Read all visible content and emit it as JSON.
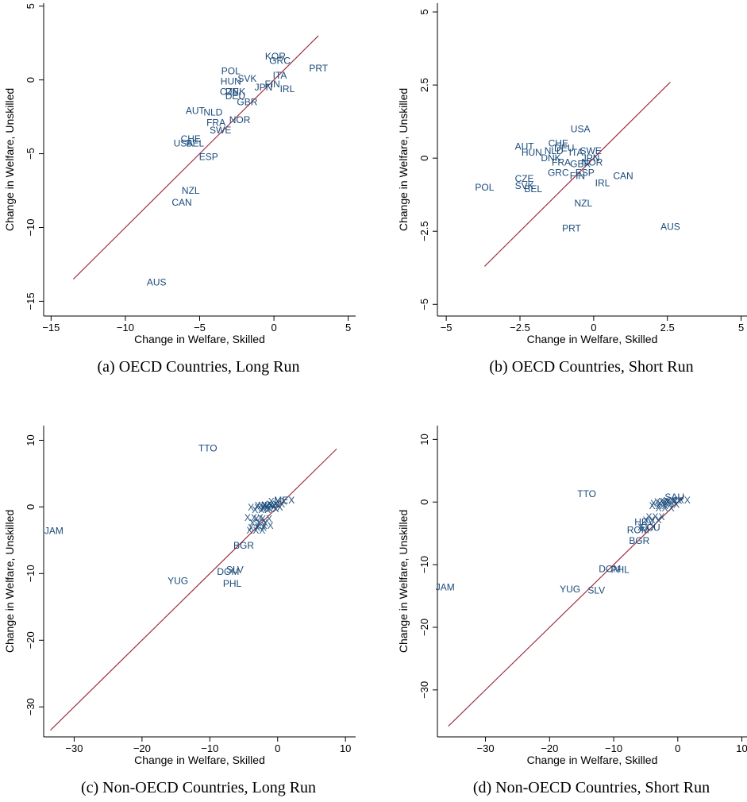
{
  "colors": {
    "points": "#1a4a7a",
    "line": "#a03040",
    "axis": "#000000"
  },
  "chart_data": [
    {
      "type": "scatter",
      "caption": "(a) OECD Countries, Long Run",
      "xlabel": "Change in Welfare, Skilled",
      "ylabel": "Change in Welfare, Unskilled",
      "xlim": [
        -15.5,
        5.5
      ],
      "ylim": [
        -16,
        5.2
      ],
      "xticks": [
        -15,
        -10,
        -5,
        0,
        5
      ],
      "yticks": [
        -15,
        -10,
        -5,
        0,
        5
      ],
      "diagonal": [
        -13.5,
        3.0
      ],
      "points": [
        {
          "label": "KOR",
          "x": 0.1,
          "y": 1.6
        },
        {
          "label": "GRC",
          "x": 0.4,
          "y": 1.3
        },
        {
          "label": "PRT",
          "x": 3.0,
          "y": 0.8
        },
        {
          "label": "POL",
          "x": -2.9,
          "y": 0.6
        },
        {
          "label": "ITA",
          "x": 0.4,
          "y": 0.3
        },
        {
          "label": "SVK",
          "x": -1.8,
          "y": 0.1
        },
        {
          "label": "HUN",
          "x": -2.9,
          "y": -0.1
        },
        {
          "label": "FIN",
          "x": -0.1,
          "y": -0.3
        },
        {
          "label": "JPN",
          "x": -0.7,
          "y": -0.5
        },
        {
          "label": "IRL",
          "x": 0.9,
          "y": -0.6
        },
        {
          "label": "CZE",
          "x": -3.0,
          "y": -0.8
        },
        {
          "label": "DNK",
          "x": -2.6,
          "y": -0.8
        },
        {
          "label": "DEU",
          "x": -2.6,
          "y": -1.1
        },
        {
          "label": "GBR",
          "x": -1.8,
          "y": -1.5
        },
        {
          "label": "AUT",
          "x": -5.3,
          "y": -2.1
        },
        {
          "label": "NLD",
          "x": -4.1,
          "y": -2.2
        },
        {
          "label": "NOR",
          "x": -2.3,
          "y": -2.7
        },
        {
          "label": "FRA",
          "x": -3.9,
          "y": -2.9
        },
        {
          "label": "SWE",
          "x": -3.6,
          "y": -3.4
        },
        {
          "label": "CHE",
          "x": -5.6,
          "y": -4.0
        },
        {
          "label": "USA",
          "x": -6.1,
          "y": -4.3
        },
        {
          "label": "BEL",
          "x": -5.3,
          "y": -4.3
        },
        {
          "label": "ESP",
          "x": -4.4,
          "y": -5.2
        },
        {
          "label": "NZL",
          "x": -5.6,
          "y": -7.5
        },
        {
          "label": "CAN",
          "x": -6.2,
          "y": -8.3
        },
        {
          "label": "AUS",
          "x": -7.9,
          "y": -13.7
        }
      ]
    },
    {
      "type": "scatter",
      "caption": "(b) OECD Countries, Short Run",
      "xlabel": "Change in Welfare, Skilled",
      "ylabel": "Change in Welfare, Unskilled",
      "xlim": [
        -5.3,
        5.2
      ],
      "ylim": [
        -5.4,
        5.3
      ],
      "xticks": [
        -5,
        -2.5,
        0,
        2.5,
        5
      ],
      "yticks": [
        -5,
        -2.5,
        0,
        2.5,
        5
      ],
      "diagonal": [
        -3.7,
        2.6
      ],
      "points": [
        {
          "label": "USA",
          "x": -0.45,
          "y": 1.0
        },
        {
          "label": "CHE",
          "x": -1.2,
          "y": 0.5
        },
        {
          "label": "AUT",
          "x": -2.35,
          "y": 0.4
        },
        {
          "label": "DEU",
          "x": -1.0,
          "y": 0.35
        },
        {
          "label": "HUN",
          "x": -2.1,
          "y": 0.2
        },
        {
          "label": "NLD",
          "x": -1.35,
          "y": 0.25
        },
        {
          "label": "SWE",
          "x": -0.1,
          "y": 0.25
        },
        {
          "label": "ITA",
          "x": -0.6,
          "y": 0.2
        },
        {
          "label": "DNK",
          "x": -1.45,
          "y": 0.0
        },
        {
          "label": "JPN",
          "x": -0.1,
          "y": 0.0
        },
        {
          "label": "FRA",
          "x": -1.1,
          "y": -0.15
        },
        {
          "label": "GBR",
          "x": -0.45,
          "y": -0.2
        },
        {
          "label": "NOR",
          "x": -0.05,
          "y": -0.15
        },
        {
          "label": "ESP",
          "x": -0.3,
          "y": -0.5
        },
        {
          "label": "GRC",
          "x": -1.2,
          "y": -0.5
        },
        {
          "label": "FIN",
          "x": -0.55,
          "y": -0.6
        },
        {
          "label": "CAN",
          "x": 1.0,
          "y": -0.6
        },
        {
          "label": "IRL",
          "x": 0.3,
          "y": -0.85
        },
        {
          "label": "CZE",
          "x": -2.35,
          "y": -0.7
        },
        {
          "label": "SVK",
          "x": -2.35,
          "y": -0.95
        },
        {
          "label": "POL",
          "x": -3.7,
          "y": -1.0
        },
        {
          "label": "BEL",
          "x": -2.05,
          "y": -1.05
        },
        {
          "label": "NZL",
          "x": -0.35,
          "y": -1.55
        },
        {
          "label": "PRT",
          "x": -0.75,
          "y": -2.4
        },
        {
          "label": "AUS",
          "x": 2.6,
          "y": -2.35
        }
      ]
    },
    {
      "type": "scatter",
      "caption": "(c) Non-OECD Countries, Long Run",
      "xlabel": "Change in Welfare, Skilled",
      "ylabel": "Change in Welfare, Unskilled",
      "xlim": [
        -34.5,
        11.5
      ],
      "ylim": [
        -34.5,
        12.2
      ],
      "xticks": [
        -30,
        -20,
        -10,
        0,
        10
      ],
      "yticks": [
        -30,
        -20,
        -10,
        0,
        10
      ],
      "diagonal": [
        -33.5,
        8.7
      ],
      "points": [
        {
          "label": "TTO",
          "x": -10.3,
          "y": 8.8
        },
        {
          "label": "JAM",
          "x": -33.0,
          "y": -3.6
        },
        {
          "label": "MEX",
          "x": 1.0,
          "y": 1.0
        },
        {
          "label": "",
          "x": 0.0,
          "y": 0.8
        },
        {
          "label": "",
          "x": -0.3,
          "y": 0.4
        },
        {
          "label": "",
          "x": -1.0,
          "y": 0.3
        },
        {
          "label": "",
          "x": -1.5,
          "y": 0.2
        },
        {
          "label": "",
          "x": -2.0,
          "y": 0.2
        },
        {
          "label": "",
          "x": -0.6,
          "y": -0.1
        },
        {
          "label": "",
          "x": -1.2,
          "y": -0.3
        },
        {
          "label": "",
          "x": -2.4,
          "y": -0.4
        },
        {
          "label": "",
          "x": -3.0,
          "y": -0.1
        },
        {
          "label": "",
          "x": -2.2,
          "y": -1.8
        },
        {
          "label": "",
          "x": -2.8,
          "y": -2.4
        },
        {
          "label": "",
          "x": -3.5,
          "y": -1.6
        },
        {
          "label": "",
          "x": -2.0,
          "y": -2.8
        },
        {
          "label": "",
          "x": -3.0,
          "y": -3.1
        },
        {
          "label": "",
          "x": -3.2,
          "y": -3.5
        },
        {
          "label": "BGR",
          "x": -5.0,
          "y": -5.8
        },
        {
          "label": "SLV",
          "x": -6.3,
          "y": -9.4
        },
        {
          "label": "DOM",
          "x": -7.3,
          "y": -9.7
        },
        {
          "label": "PHL",
          "x": -6.7,
          "y": -11.5
        },
        {
          "label": "YUG",
          "x": -14.7,
          "y": -11.1
        }
      ]
    },
    {
      "type": "scatter",
      "caption": "(d) Non-OECD Countries, Short Run",
      "xlabel": "Change in Welfare, Skilled",
      "ylabel": "Change in Welfare, Unskilled",
      "xlim": [
        -37.5,
        10.8
      ],
      "ylim": [
        -37.5,
        12.2
      ],
      "xticks": [
        -30,
        -20,
        -10,
        0,
        10
      ],
      "yticks": [
        -30,
        -20,
        -10,
        0,
        10
      ],
      "diagonal": [
        -35.8,
        1.0
      ],
      "points": [
        {
          "label": "TTO",
          "x": -14.2,
          "y": 1.3
        },
        {
          "label": "JAM",
          "x": -36.3,
          "y": -13.6
        },
        {
          "label": "SAU",
          "x": -0.5,
          "y": 0.8
        },
        {
          "label": "",
          "x": 0.5,
          "y": 0.3
        },
        {
          "label": "",
          "x": -0.8,
          "y": 0.2
        },
        {
          "label": "",
          "x": -1.5,
          "y": 0.1
        },
        {
          "label": "",
          "x": -2.2,
          "y": 0.0
        },
        {
          "label": "",
          "x": -2.8,
          "y": -0.2
        },
        {
          "label": "",
          "x": -1.2,
          "y": -0.4
        },
        {
          "label": "",
          "x": -3.0,
          "y": -0.6
        },
        {
          "label": "",
          "x": -2.0,
          "y": -1.0
        },
        {
          "label": "",
          "x": -3.5,
          "y": -2.4
        },
        {
          "label": "",
          "x": -4.0,
          "y": -2.9
        },
        {
          "label": "HRV",
          "x": -5.2,
          "y": -3.2
        },
        {
          "label": "",
          "x": -4.8,
          "y": -4.0
        },
        {
          "label": "ECU",
          "x": -4.3,
          "y": -4.1
        },
        {
          "label": "ROM",
          "x": -6.2,
          "y": -4.5
        },
        {
          "label": "BGR",
          "x": -6.0,
          "y": -6.2
        },
        {
          "label": "DOM",
          "x": -10.6,
          "y": -10.7
        },
        {
          "label": "PHL",
          "x": -9.0,
          "y": -10.8
        },
        {
          "label": "YUG",
          "x": -16.8,
          "y": -13.9
        },
        {
          "label": "SLV",
          "x": -12.7,
          "y": -14.1
        }
      ]
    }
  ]
}
